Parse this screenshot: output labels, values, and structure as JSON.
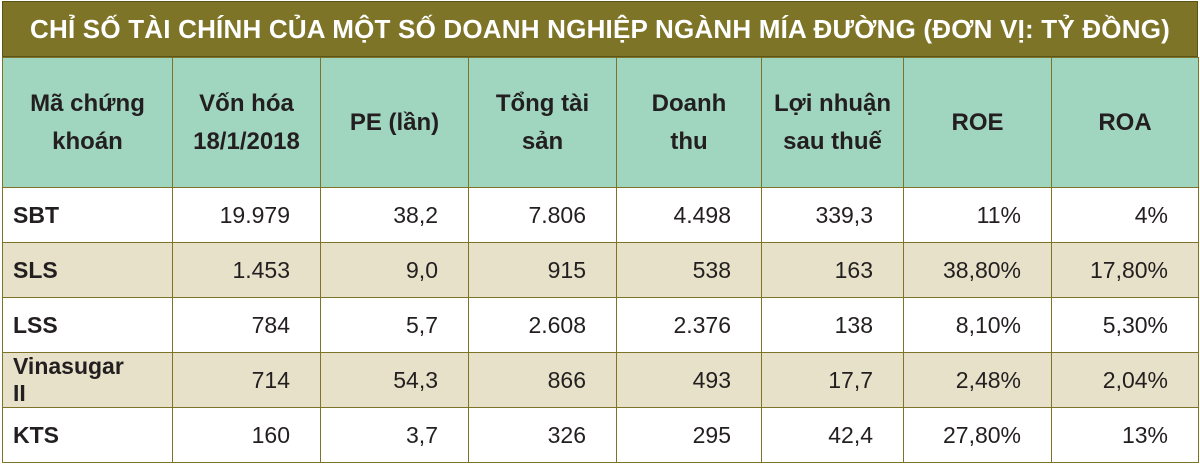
{
  "title": "CHỈ SỐ TÀI CHÍNH CỦA MỘT SỐ DOANH NGHIỆP NGÀNH MÍA ĐƯỜNG (ĐƠN VỊ: TỶ ĐỒNG)",
  "headers": [
    [
      "Mã chứng",
      "khoán"
    ],
    [
      "Vốn hóa",
      "18/1/2018"
    ],
    [
      "PE (lần)"
    ],
    [
      "Tổng tài",
      "sản"
    ],
    [
      "Doanh",
      "thu"
    ],
    [
      "Lợi nhuận",
      "sau thuế"
    ],
    [
      "ROE"
    ],
    [
      "ROA"
    ]
  ],
  "rows": [
    [
      "SBT",
      "19.979",
      "38,2",
      "7.806",
      "4.498",
      "339,3",
      "11%",
      "4%"
    ],
    [
      "SLS",
      "1.453",
      "9,0",
      "915",
      "538",
      "163",
      "38,80%",
      "17,80%"
    ],
    [
      "LSS",
      "784",
      "5,7",
      "2.608",
      "2.376",
      "138",
      "8,10%",
      "5,30%"
    ],
    [
      "Vinasugar II",
      "714",
      "54,3",
      "866",
      "493",
      "17,7",
      "2,48%",
      "2,04%"
    ],
    [
      "KTS",
      "160",
      "3,7",
      "326",
      "295",
      "42,4",
      "27,80%",
      "13%"
    ]
  ],
  "colors": {
    "title_bg": "#7d7427",
    "header_bg": "#a0d5c0",
    "alt_row_bg": "#e6e1c8",
    "border": "#7d7427"
  }
}
